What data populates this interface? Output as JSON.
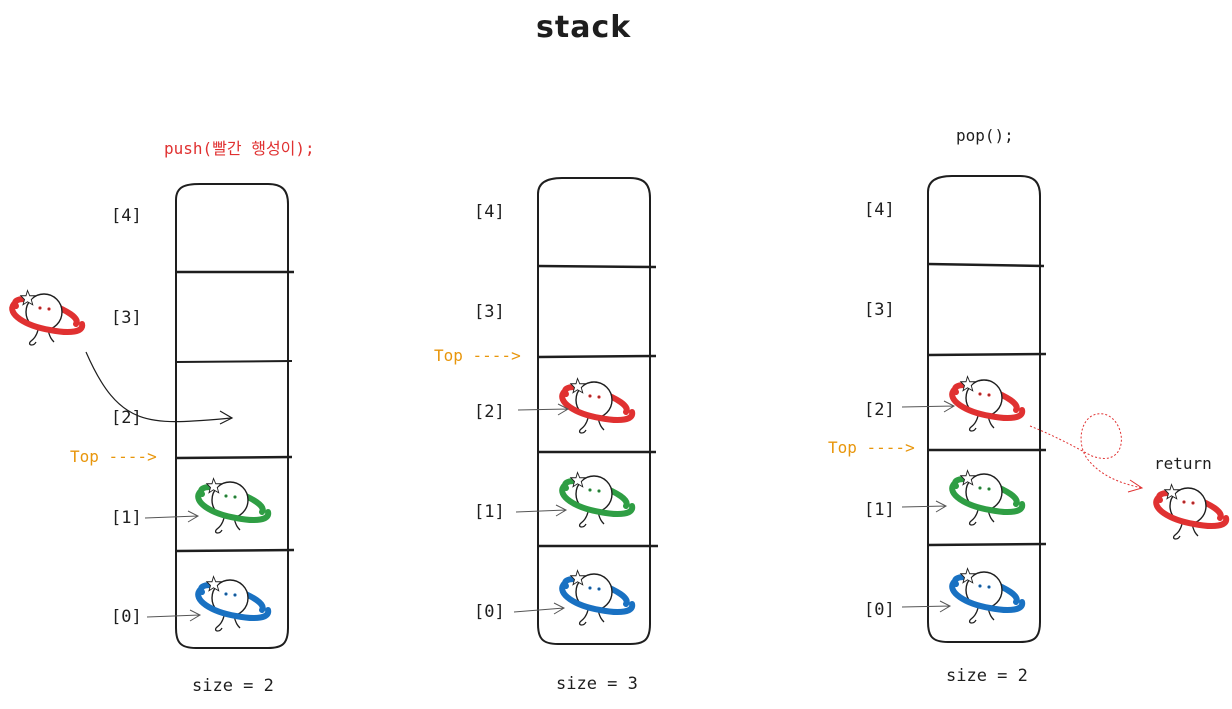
{
  "title": "stack",
  "colors": {
    "push": "#e03131",
    "top": "#e8960c",
    "red": "#e03131",
    "green": "#2f9e44",
    "blue": "#1971c2",
    "ink": "#1e1e1e"
  },
  "icons": {
    "planet": "planet-icon",
    "sparkle": "sparkle-icon"
  },
  "stacks": [
    {
      "operation": "push(빨간 행성이);",
      "indices": [
        "[4]",
        "[3]",
        "[2]",
        "[1]",
        "[0]"
      ],
      "top_label": "Top ---->",
      "size_label": "size = 2",
      "top_index": 1,
      "contents": [
        "blue",
        "green"
      ]
    },
    {
      "operation": "",
      "indices": [
        "[4]",
        "[3]",
        "[2]",
        "[1]",
        "[0]"
      ],
      "top_label": "Top ---->",
      "size_label": "size = 3",
      "top_index": 2,
      "contents": [
        "blue",
        "green",
        "red"
      ]
    },
    {
      "operation": "pop();",
      "indices": [
        "[4]",
        "[3]",
        "[2]",
        "[1]",
        "[0]"
      ],
      "top_label": "Top ---->",
      "size_label": "size = 2",
      "top_index": 1,
      "contents": [
        "blue",
        "green",
        "red"
      ]
    }
  ],
  "return_label": "return"
}
